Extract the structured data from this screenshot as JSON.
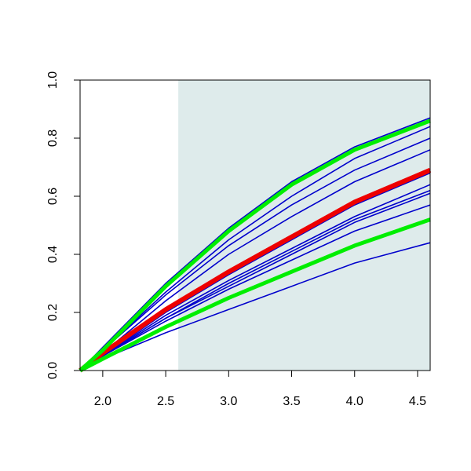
{
  "chart_data": {
    "type": "line",
    "x": [
      1.82,
      2.0,
      2.5,
      3.0,
      3.5,
      4.0,
      4.6
    ],
    "series": [
      {
        "color": "#0000cc",
        "linewidth": 1.6,
        "values": [
          0,
          0.08,
          0.3,
          0.49,
          0.65,
          0.77,
          0.87
        ]
      },
      {
        "color": "#0000cc",
        "linewidth": 1.6,
        "values": [
          0,
          0.07,
          0.27,
          0.45,
          0.6,
          0.73,
          0.84
        ]
      },
      {
        "color": "#0000cc",
        "linewidth": 1.6,
        "values": [
          0,
          0.07,
          0.26,
          0.43,
          0.57,
          0.69,
          0.8
        ]
      },
      {
        "color": "#0000cc",
        "linewidth": 1.6,
        "values": [
          0,
          0.06,
          0.24,
          0.4,
          0.53,
          0.65,
          0.76
        ]
      },
      {
        "color": "#0000cc",
        "linewidth": 1.6,
        "values": [
          0,
          0.05,
          0.2,
          0.33,
          0.45,
          0.57,
          0.68
        ]
      },
      {
        "color": "#0000cc",
        "linewidth": 1.6,
        "values": [
          0,
          0.05,
          0.19,
          0.31,
          0.42,
          0.53,
          0.64
        ]
      },
      {
        "color": "#0000cc",
        "linewidth": 1.6,
        "values": [
          0,
          0.05,
          0.18,
          0.3,
          0.41,
          0.52,
          0.62
        ]
      },
      {
        "color": "#0000cc",
        "linewidth": 1.6,
        "values": [
          0,
          0.05,
          0.18,
          0.29,
          0.4,
          0.51,
          0.61
        ]
      },
      {
        "color": "#0000cc",
        "linewidth": 1.6,
        "values": [
          0,
          0.05,
          0.17,
          0.28,
          0.38,
          0.48,
          0.57
        ]
      },
      {
        "color": "#0000cc",
        "linewidth": 1.6,
        "values": [
          0,
          0.04,
          0.13,
          0.21,
          0.29,
          0.37,
          0.44
        ]
      },
      {
        "color": "#ee0000",
        "linewidth": 6,
        "values": [
          0,
          0.06,
          0.21,
          0.34,
          0.46,
          0.58,
          0.69
        ]
      },
      {
        "color": "#00ee00",
        "linewidth": 5,
        "values": [
          0,
          0.07,
          0.29,
          0.48,
          0.64,
          0.76,
          0.86
        ]
      },
      {
        "color": "#00ee00",
        "linewidth": 5,
        "values": [
          0,
          0.04,
          0.15,
          0.25,
          0.34,
          0.43,
          0.52
        ]
      }
    ],
    "shaded_xrange": [
      2.6,
      4.6
    ],
    "shade_color": "#deebeb",
    "xlim": [
      1.82,
      4.6
    ],
    "xticks": [
      {
        "value": 2,
        "label": "2.0"
      },
      2.5,
      {
        "value": 3,
        "label": "3.0"
      },
      3.5,
      {
        "value": 4,
        "label": "4.0"
      },
      4.5
    ],
    "ylim": [
      0,
      1
    ],
    "yticks": [
      {
        "value": 0,
        "label": "0.0"
      },
      0.2,
      0.4,
      0.6,
      0.8,
      {
        "value": 1,
        "label": "1.0"
      }
    ]
  }
}
